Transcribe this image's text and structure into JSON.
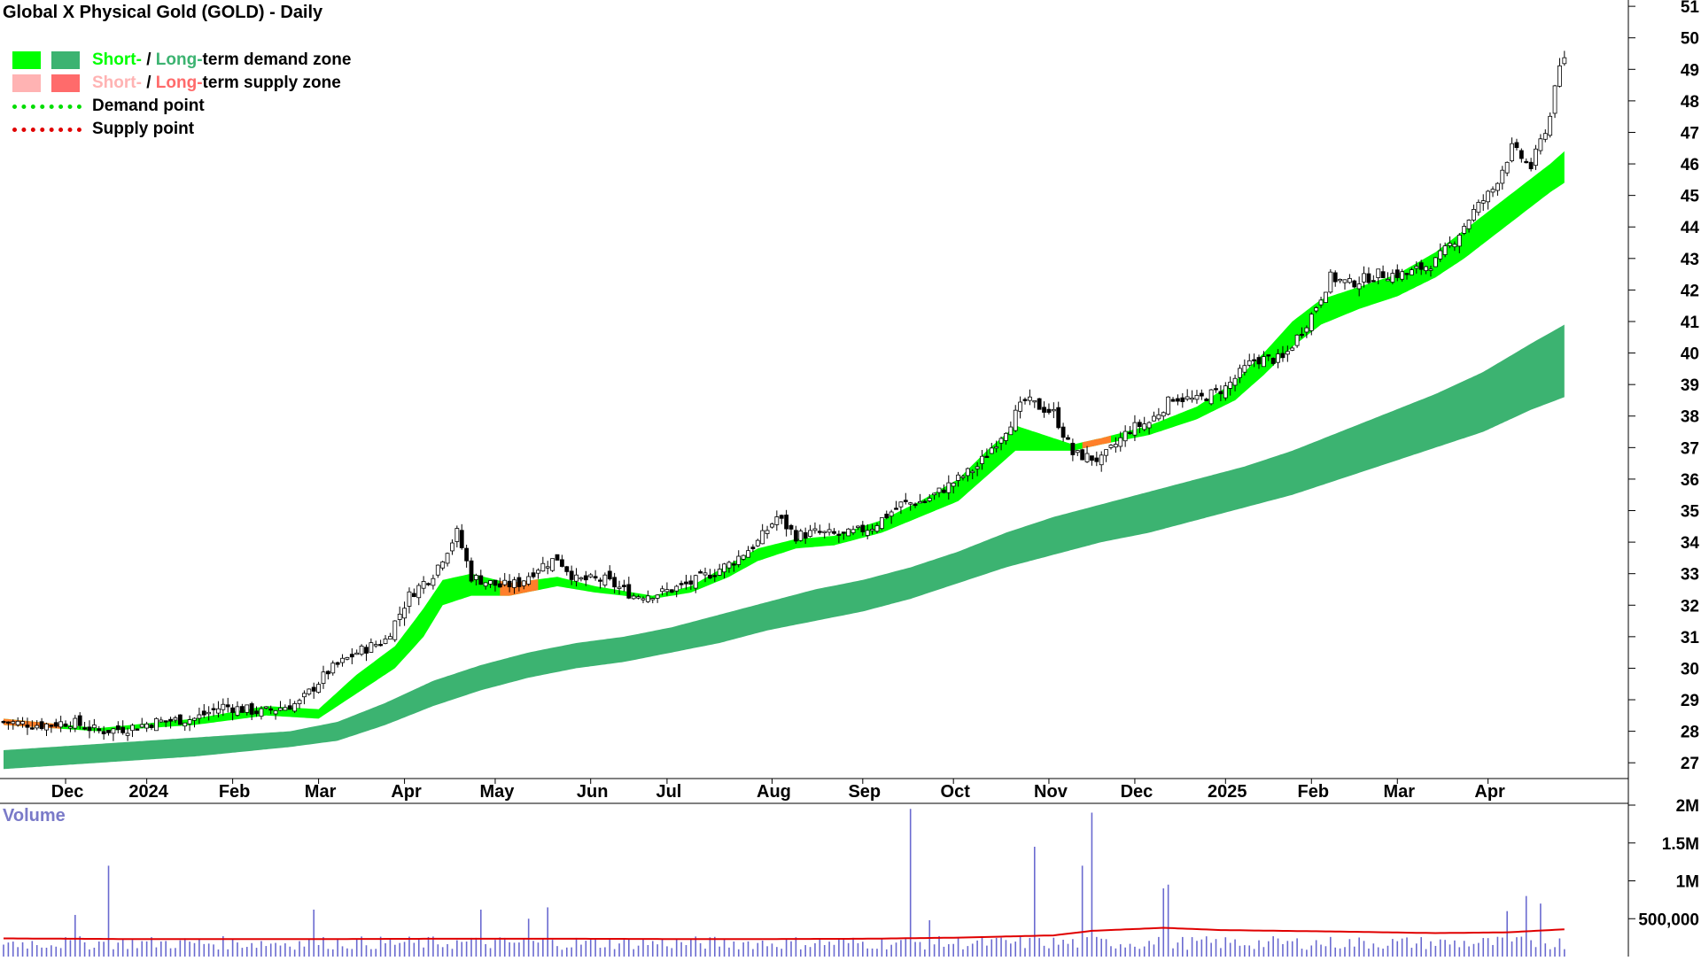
{
  "title": "Global X Physical Gold (GOLD) - Daily",
  "legend": {
    "zone_demand": {
      "short": "Short-",
      "sep": " / ",
      "long": "Long-",
      "rest": "term demand zone"
    },
    "zone_supply": {
      "short": "Short-",
      "sep": " / ",
      "long": "Long-",
      "rest": "term supply zone"
    },
    "demand_point": "Demand point",
    "supply_point": "Supply point"
  },
  "colors": {
    "short_demand": "#00ff00",
    "long_demand": "#3cb371",
    "short_supply": "#ffb3b3",
    "long_supply": "#ff6b6b",
    "supply_overlap": "#ff7f2a",
    "volume_bar": "#6a6ad0",
    "volume_ma": "#e00000",
    "demand_point": "#00dd00",
    "supply_point": "#e00000"
  },
  "volume_title": "Volume",
  "chart_data": [
    {
      "type": "candlestick",
      "title": "Global X Physical Gold (GOLD) - Daily",
      "ylim": [
        26.5,
        51.2
      ],
      "y_ticks": [
        27,
        28,
        29,
        30,
        31,
        32,
        33,
        34,
        35,
        36,
        37,
        38,
        39,
        40,
        41,
        42,
        43,
        44,
        45,
        46,
        47,
        48,
        49,
        50,
        51
      ],
      "y_axis_side": "right",
      "x_tick_labels": [
        "Dec",
        "2024",
        "Feb",
        "Mar",
        "Apr",
        "May",
        "Jun",
        "Jul",
        "Aug",
        "Sep",
        "Oct",
        "Nov",
        "Dec",
        "2025",
        "Feb",
        "Mar",
        "Apr"
      ],
      "x_tick_days": [
        13,
        30,
        48,
        66,
        84,
        103,
        123,
        139,
        161,
        180,
        199,
        219,
        237,
        256,
        274,
        292,
        311
      ],
      "x_range_days": [
        0,
        330
      ],
      "close_path": [
        [
          0,
          28.3
        ],
        [
          8,
          28.2
        ],
        [
          14,
          28.3
        ],
        [
          20,
          28.0
        ],
        [
          26,
          28.1
        ],
        [
          32,
          28.3
        ],
        [
          40,
          28.4
        ],
        [
          46,
          28.8
        ],
        [
          54,
          28.6
        ],
        [
          62,
          28.9
        ],
        [
          68,
          29.9
        ],
        [
          74,
          30.5
        ],
        [
          80,
          30.9
        ],
        [
          85,
          32.3
        ],
        [
          90,
          33.0
        ],
        [
          95,
          34.3
        ],
        [
          98,
          32.9
        ],
        [
          104,
          32.6
        ],
        [
          108,
          32.7
        ],
        [
          112,
          33.2
        ],
        [
          116,
          33.5
        ],
        [
          120,
          32.8
        ],
        [
          126,
          32.8
        ],
        [
          132,
          32.3
        ],
        [
          138,
          32.4
        ],
        [
          144,
          32.7
        ],
        [
          152,
          33.3
        ],
        [
          158,
          34.0
        ],
        [
          162,
          34.8
        ],
        [
          166,
          34.2
        ],
        [
          170,
          34.3
        ],
        [
          176,
          34.2
        ],
        [
          182,
          34.5
        ],
        [
          188,
          35.2
        ],
        [
          193,
          35.3
        ],
        [
          198,
          35.8
        ],
        [
          204,
          36.4
        ],
        [
          210,
          37.6
        ],
        [
          214,
          38.5
        ],
        [
          220,
          38.1
        ],
        [
          224,
          36.8
        ],
        [
          230,
          36.6
        ],
        [
          236,
          37.6
        ],
        [
          240,
          37.8
        ],
        [
          245,
          38.6
        ],
        [
          250,
          38.5
        ],
        [
          256,
          38.9
        ],
        [
          262,
          39.8
        ],
        [
          268,
          39.8
        ],
        [
          274,
          41.2
        ],
        [
          278,
          42.4
        ],
        [
          282,
          42.2
        ],
        [
          288,
          42.5
        ],
        [
          294,
          42.5
        ],
        [
          300,
          42.9
        ],
        [
          304,
          43.6
        ],
        [
          308,
          44.5
        ],
        [
          312,
          45.2
        ],
        [
          316,
          46.5
        ],
        [
          318,
          46.2
        ],
        [
          320,
          45.9
        ],
        [
          322,
          46.7
        ],
        [
          324,
          47.5
        ],
        [
          325,
          48.6
        ],
        [
          327,
          49.3
        ]
      ],
      "short_term_demand_zone": {
        "upper": [
          [
            0,
            28.4
          ],
          [
            20,
            28.1
          ],
          [
            40,
            28.4
          ],
          [
            55,
            28.8
          ],
          [
            66,
            28.7
          ],
          [
            74,
            29.8
          ],
          [
            82,
            30.7
          ],
          [
            88,
            31.9
          ],
          [
            92,
            32.8
          ],
          [
            98,
            33.0
          ],
          [
            106,
            32.7
          ],
          [
            116,
            32.9
          ],
          [
            124,
            32.6
          ],
          [
            136,
            32.3
          ],
          [
            144,
            32.6
          ],
          [
            152,
            33.3
          ],
          [
            158,
            33.8
          ],
          [
            166,
            34.1
          ],
          [
            174,
            34.2
          ],
          [
            184,
            34.7
          ],
          [
            192,
            35.3
          ],
          [
            200,
            36.0
          ],
          [
            206,
            36.9
          ],
          [
            212,
            37.7
          ],
          [
            218,
            37.4
          ],
          [
            224,
            37.1
          ],
          [
            230,
            37.3
          ],
          [
            240,
            37.7
          ],
          [
            250,
            38.3
          ],
          [
            258,
            39.1
          ],
          [
            264,
            40.0
          ],
          [
            270,
            41.0
          ],
          [
            276,
            41.7
          ],
          [
            284,
            42.1
          ],
          [
            292,
            42.5
          ],
          [
            300,
            43.2
          ],
          [
            306,
            43.9
          ],
          [
            312,
            44.6
          ],
          [
            318,
            45.3
          ],
          [
            324,
            46.0
          ],
          [
            327,
            46.4
          ]
        ],
        "lower": [
          [
            0,
            28.2
          ],
          [
            20,
            28.0
          ],
          [
            40,
            28.2
          ],
          [
            55,
            28.5
          ],
          [
            66,
            28.4
          ],
          [
            74,
            29.2
          ],
          [
            82,
            30.0
          ],
          [
            88,
            31.0
          ],
          [
            92,
            32.0
          ],
          [
            98,
            32.3
          ],
          [
            106,
            32.3
          ],
          [
            116,
            32.6
          ],
          [
            124,
            32.4
          ],
          [
            136,
            32.2
          ],
          [
            144,
            32.4
          ],
          [
            152,
            32.9
          ],
          [
            158,
            33.4
          ],
          [
            166,
            33.8
          ],
          [
            174,
            33.9
          ],
          [
            184,
            34.3
          ],
          [
            192,
            34.8
          ],
          [
            200,
            35.3
          ],
          [
            206,
            36.1
          ],
          [
            212,
            36.9
          ],
          [
            218,
            36.9
          ],
          [
            224,
            36.9
          ],
          [
            230,
            37.1
          ],
          [
            240,
            37.4
          ],
          [
            250,
            37.9
          ],
          [
            258,
            38.5
          ],
          [
            264,
            39.3
          ],
          [
            270,
            40.2
          ],
          [
            276,
            40.9
          ],
          [
            284,
            41.4
          ],
          [
            292,
            41.8
          ],
          [
            300,
            42.4
          ],
          [
            306,
            43.0
          ],
          [
            312,
            43.7
          ],
          [
            318,
            44.4
          ],
          [
            324,
            45.1
          ],
          [
            327,
            45.4
          ]
        ]
      },
      "long_term_demand_zone": {
        "upper": [
          [
            0,
            27.4
          ],
          [
            20,
            27.6
          ],
          [
            40,
            27.8
          ],
          [
            60,
            28.0
          ],
          [
            70,
            28.3
          ],
          [
            80,
            28.9
          ],
          [
            90,
            29.6
          ],
          [
            100,
            30.1
          ],
          [
            110,
            30.5
          ],
          [
            120,
            30.8
          ],
          [
            130,
            31.0
          ],
          [
            140,
            31.3
          ],
          [
            150,
            31.7
          ],
          [
            160,
            32.1
          ],
          [
            170,
            32.5
          ],
          [
            180,
            32.8
          ],
          [
            190,
            33.2
          ],
          [
            200,
            33.7
          ],
          [
            210,
            34.3
          ],
          [
            220,
            34.8
          ],
          [
            230,
            35.2
          ],
          [
            240,
            35.6
          ],
          [
            250,
            36.0
          ],
          [
            260,
            36.4
          ],
          [
            270,
            36.9
          ],
          [
            280,
            37.5
          ],
          [
            290,
            38.1
          ],
          [
            300,
            38.7
          ],
          [
            310,
            39.4
          ],
          [
            320,
            40.3
          ],
          [
            327,
            40.9
          ]
        ],
        "lower": [
          [
            0,
            26.8
          ],
          [
            20,
            27.0
          ],
          [
            40,
            27.2
          ],
          [
            60,
            27.5
          ],
          [
            70,
            27.7
          ],
          [
            80,
            28.2
          ],
          [
            90,
            28.8
          ],
          [
            100,
            29.3
          ],
          [
            110,
            29.7
          ],
          [
            120,
            30.0
          ],
          [
            130,
            30.2
          ],
          [
            140,
            30.5
          ],
          [
            150,
            30.8
          ],
          [
            160,
            31.2
          ],
          [
            170,
            31.5
          ],
          [
            180,
            31.8
          ],
          [
            190,
            32.2
          ],
          [
            200,
            32.7
          ],
          [
            210,
            33.2
          ],
          [
            220,
            33.6
          ],
          [
            230,
            34.0
          ],
          [
            240,
            34.3
          ],
          [
            250,
            34.7
          ],
          [
            260,
            35.1
          ],
          [
            270,
            35.5
          ],
          [
            280,
            36.0
          ],
          [
            290,
            36.5
          ],
          [
            300,
            37.0
          ],
          [
            310,
            37.5
          ],
          [
            320,
            38.2
          ],
          [
            327,
            38.6
          ]
        ]
      },
      "supply_overlap_segments": [
        [
          0,
          12
        ],
        [
          104,
          112
        ],
        [
          226,
          232
        ]
      ],
      "legend": [
        "Short- / Long-term demand zone",
        "Short- / Long-term supply zone",
        "Demand point",
        "Supply point"
      ],
      "grid": false,
      "legend_position": "top-left"
    },
    {
      "type": "bar",
      "title": "Volume",
      "ylim": [
        0,
        2000000
      ],
      "y_tick_labels": [
        "2M",
        "1.5M",
        "1M",
        "500,000"
      ],
      "y_tick_values": [
        2000000,
        1500000,
        1000000,
        500000
      ],
      "spikes": [
        [
          15,
          550000
        ],
        [
          22,
          1200000
        ],
        [
          65,
          620000
        ],
        [
          100,
          620000
        ],
        [
          110,
          500000
        ],
        [
          114,
          650000
        ],
        [
          190,
          1950000
        ],
        [
          194,
          480000
        ],
        [
          216,
          1450000
        ],
        [
          226,
          1200000
        ],
        [
          228,
          1900000
        ],
        [
          243,
          900000
        ],
        [
          244,
          950000
        ],
        [
          315,
          600000
        ],
        [
          319,
          800000
        ],
        [
          322,
          700000
        ]
      ],
      "baseline_volume": 180000,
      "moving_average": [
        [
          0,
          240000
        ],
        [
          30,
          230000
        ],
        [
          60,
          230000
        ],
        [
          90,
          235000
        ],
        [
          120,
          235000
        ],
        [
          150,
          230000
        ],
        [
          180,
          235000
        ],
        [
          200,
          250000
        ],
        [
          220,
          280000
        ],
        [
          228,
          340000
        ],
        [
          243,
          380000
        ],
        [
          255,
          350000
        ],
        [
          280,
          330000
        ],
        [
          300,
          310000
        ],
        [
          315,
          320000
        ],
        [
          327,
          360000
        ]
      ]
    }
  ]
}
